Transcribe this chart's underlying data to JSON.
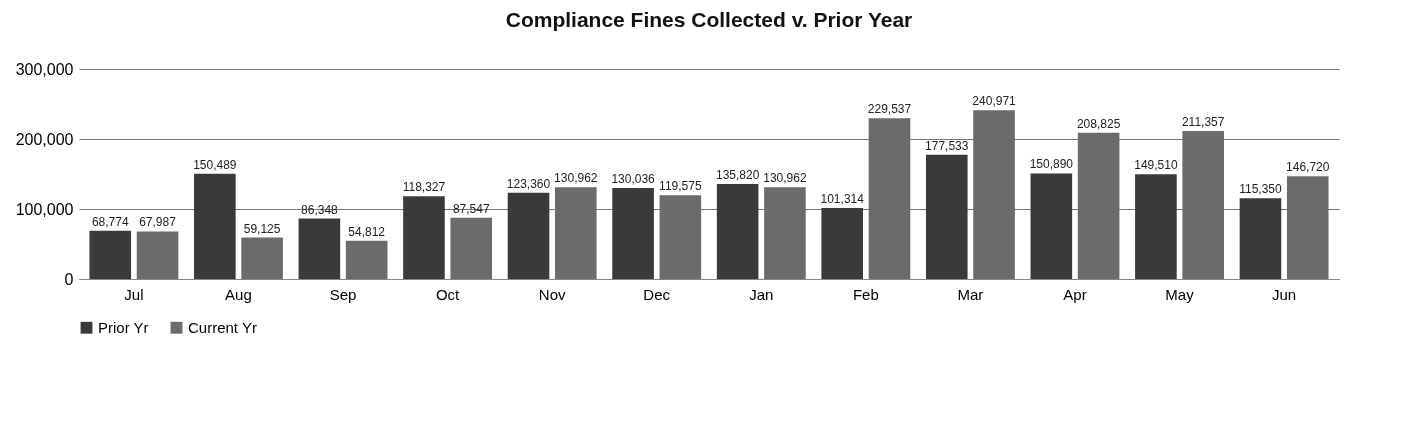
{
  "chart_data": {
    "type": "bar",
    "title": "Compliance Fines Collected v. Prior Year",
    "categories": [
      "Jul",
      "Aug",
      "Sep",
      "Oct",
      "Nov",
      "Dec",
      "Jan",
      "Feb",
      "Mar",
      "Apr",
      "May",
      "Jun"
    ],
    "series": [
      {
        "name": "Prior Yr",
        "color": "#3a3a3a",
        "values": [
          68774,
          150489,
          86348,
          118327,
          123360,
          130036,
          135820,
          101314,
          177533,
          150890,
          149510,
          115350
        ],
        "value_labels": [
          "68,774",
          "150,489",
          "86,348",
          "118,327",
          "123,360",
          "130,036",
          "135,820",
          "101,314",
          "177,533",
          "150,890",
          "149,510",
          "115,350"
        ]
      },
      {
        "name": "Current Yr",
        "color": "#6b6b6b",
        "values": [
          67987,
          59125,
          54812,
          87547,
          130962,
          119575,
          130962,
          229537,
          240971,
          208825,
          211357,
          146720
        ],
        "value_labels": [
          "67,987",
          "59,125",
          "54,812",
          "87,547",
          "130,962",
          "119,575",
          "130,962",
          "229,537",
          "240,971",
          "208,825",
          "211,357",
          "146,720"
        ]
      }
    ],
    "ylim": [
      0,
      300000
    ],
    "yticks": [
      {
        "value": 0,
        "label": "0"
      },
      {
        "value": 100000,
        "label": "100,000"
      },
      {
        "value": 200000,
        "label": "200,000"
      },
      {
        "value": 300000,
        "label": "300,000"
      }
    ],
    "grid": "y",
    "legend": "bottom"
  }
}
